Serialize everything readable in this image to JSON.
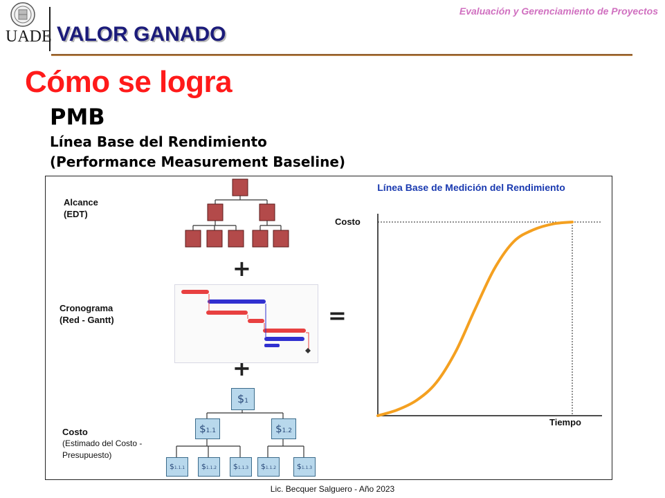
{
  "header": {
    "logo_text": "UADE",
    "course": "Evaluación y Gerenciamiento de Proyectos",
    "section_title": "VALOR GANADO"
  },
  "slide": {
    "heading": "Cómo se logra",
    "pmb": "PMB",
    "pmb_line1": "Línea Base del Rendimiento",
    "pmb_line2": "(Performance Measurement Baseline)"
  },
  "figure": {
    "alcance_line1": "Alcance",
    "alcance_line2": "(EDT)",
    "plus": "+",
    "equals": "=",
    "cronograma_line1": "Cronograma",
    "cronograma_line2": "(Red - Gantt)",
    "costo_title": "Costo",
    "costo_line2": "(Estimado del Costo -",
    "costo_line3": "Presupuesto)",
    "cost_nodes": {
      "n1": "1",
      "n11": "1.1",
      "n12": "1.2",
      "n111": "1.1.1",
      "n112": "1.1.2",
      "n113": "1.1.3",
      "n121": "1.1.2",
      "n122": "1.1.3",
      "symbol": "$"
    },
    "chart_title": "Línea Base de Medición del Rendimiento",
    "axis_y_label": "Costo",
    "axis_x_label": "Tiempo"
  },
  "chart_data": {
    "type": "line",
    "title": "Línea Base de Medición del Rendimiento",
    "xlabel": "Tiempo",
    "ylabel": "Costo",
    "series": [
      {
        "x": [
          0,
          0.1,
          0.2,
          0.3,
          0.4,
          0.5,
          0.6,
          0.7,
          0.8,
          0.9,
          1.0
        ],
        "values": [
          0,
          0.03,
          0.08,
          0.17,
          0.33,
          0.55,
          0.76,
          0.9,
          0.96,
          0.99,
          1.0
        ]
      }
    ],
    "colors": {
      "curve": "#f4a020",
      "wbs_box": "#b34a4a",
      "gantt_red": "#e84040",
      "gantt_blue": "#3030d0"
    }
  },
  "footer": {
    "text": "Lic. Becquer Salguero - Año 2023"
  }
}
